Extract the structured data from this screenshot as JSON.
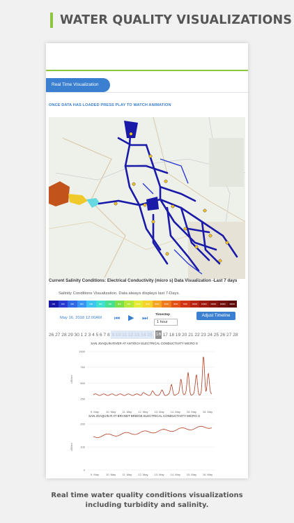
{
  "headline": "WATER QUALITY VISUALIZATIONS",
  "app": {
    "tab_label": "Real Time Visualization",
    "notice": "ONCE DATA HAS LOADED PRESS PLAY TO WATCH ANIMATION",
    "conditions_title": "Current Salinity Conditions: Electrical Conductivity (micro s) Data Visualization -Last 7 days",
    "conditions_sub": "Salinity Conditions Visualization. Data always displays last 7-Days.",
    "scale": [
      {
        "label": "100",
        "color": "#1a1aa8"
      },
      {
        "label": "200",
        "color": "#2a3bd0"
      },
      {
        "label": "300",
        "color": "#2e6ae6"
      },
      {
        "label": "400",
        "color": "#3a95f2"
      },
      {
        "label": "500",
        "color": "#3fc6f0"
      },
      {
        "label": "600",
        "color": "#3fe0d0"
      },
      {
        "label": "700",
        "color": "#48e090"
      },
      {
        "label": "800",
        "color": "#7ee048"
      },
      {
        "label": "900",
        "color": "#b6e83a"
      },
      {
        "label": "1000",
        "color": "#e6ea34"
      },
      {
        "label": "1500",
        "color": "#f6d22c"
      },
      {
        "label": "2000",
        "color": "#f4a524"
      },
      {
        "label": "3000",
        "color": "#ee7a1e"
      },
      {
        "label": "5000",
        "color": "#e25218"
      },
      {
        "label": "7500",
        "color": "#d03414"
      },
      {
        "label": "10000",
        "color": "#b82412"
      },
      {
        "label": "15000",
        "color": "#a01a10"
      },
      {
        "label": "20000",
        "color": "#8a140e"
      },
      {
        "label": "25000",
        "color": "#74100c"
      },
      {
        "label": "30000",
        "color": "#5e0c0a"
      }
    ],
    "datetime": "May 16, 2018 12:00AM",
    "icons": {
      "prev": "skip-back-icon",
      "play": "play-icon",
      "next": "skip-forward-icon"
    },
    "timestep_label": "Timestep",
    "timestep_value": "1 hour",
    "adjust_label": "Adjust Timeline",
    "timeline_before": [
      "26",
      "27",
      "28",
      "29",
      "30",
      "1",
      "2",
      "3",
      "4",
      "5",
      "6",
      "7",
      "8"
    ],
    "timeline_zone": [
      "9",
      "10",
      "11",
      "12",
      "13",
      "14",
      "15"
    ],
    "timeline_current": "16",
    "timeline_after": [
      "17",
      "18",
      "19",
      "20",
      "21",
      "22",
      "23",
      "24",
      "25",
      "26",
      "27",
      "28"
    ]
  },
  "charts": [
    {
      "title": "SAN JOAQUIN RIVER AT ANTIOCH ELECTRICAL CONDUCTIVITY MICRO S",
      "ylabel": "uS/cm",
      "yticks": [
        "1000",
        "750",
        "500",
        "250"
      ],
      "xticks": [
        "9. May",
        "10. May",
        "11. May",
        "12. May",
        "13. May",
        "14. May",
        "15. May",
        "16. May"
      ],
      "color": "#b03a1e"
    },
    {
      "title": "SAN JOAQUIN R AT BRANDT BRIDGE ELECTRICAL CONDUCTIVITY MICRO S",
      "ylabel": "uS/cm",
      "yticks": [
        "200",
        "100",
        "0"
      ],
      "xticks": [
        "9. May",
        "10. May",
        "11. May",
        "12. May",
        "13. May",
        "14. May",
        "15. May",
        "16. May"
      ],
      "color": "#b03a1e"
    }
  ],
  "caption_line1": "Real time water quality conditions visualizations",
  "caption_line2": "including turbidity and salinity."
}
